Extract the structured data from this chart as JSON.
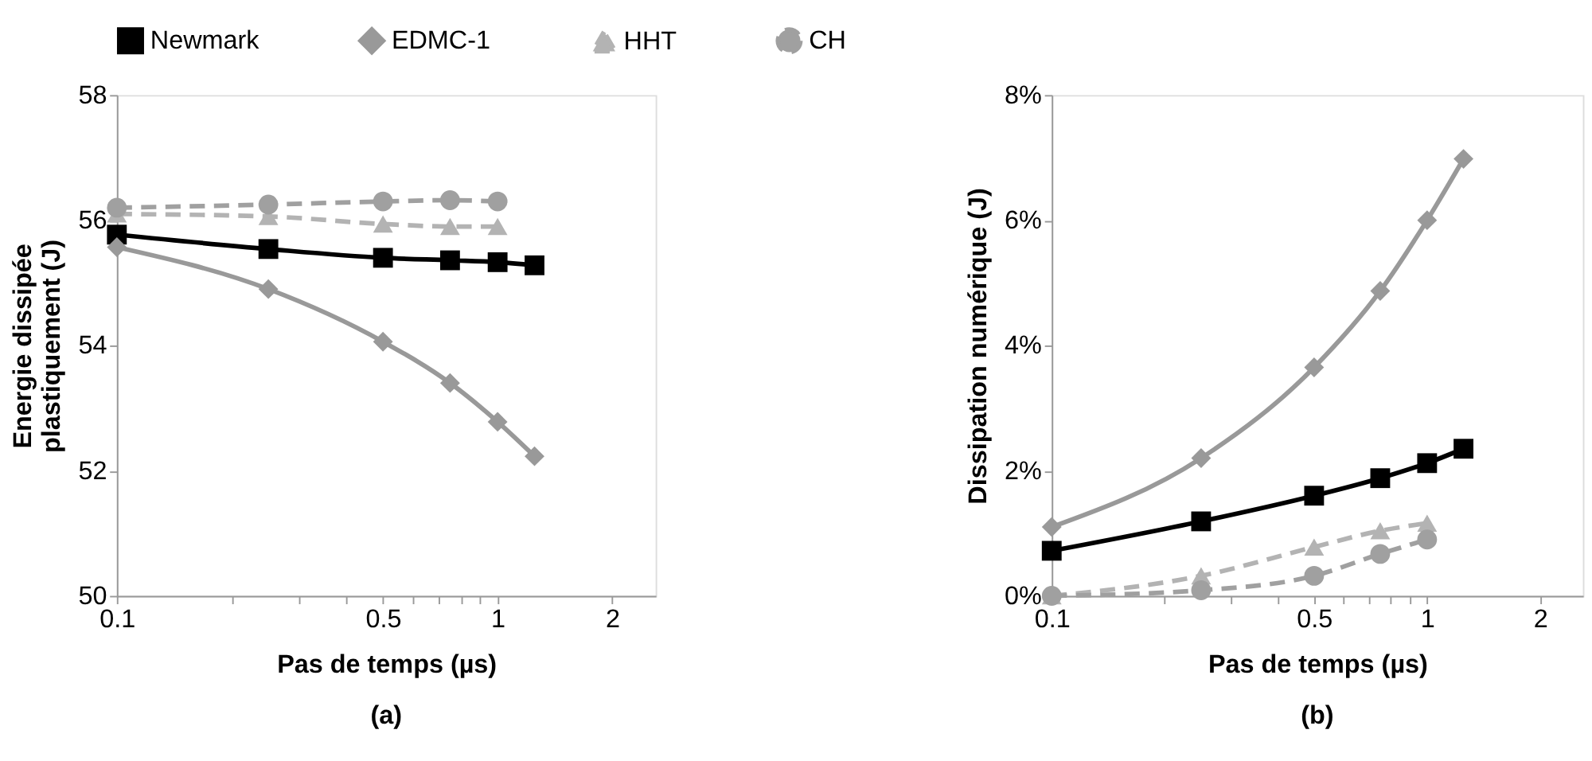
{
  "chart_data": [
    {
      "type": "line",
      "xlabel": "Pas de temps (µs)",
      "ylabel": [
        "Energie dissipée",
        "plastiquement (J)"
      ],
      "annotations": [
        "(a)"
      ],
      "log": "x",
      "grid": false,
      "legend": "top",
      "xlim": [
        0.1,
        2.6
      ],
      "xticks": [
        0.1,
        {
          "value": 0.2,
          "label": null
        },
        {
          "value": 0.3,
          "label": null
        },
        {
          "value": 0.4,
          "label": null
        },
        0.5,
        {
          "value": 0.6,
          "label": null
        },
        {
          "value": 0.7,
          "label": null
        },
        {
          "value": 0.8,
          "label": null
        },
        {
          "value": 0.9,
          "label": null
        },
        1,
        2
      ],
      "ylim": [
        50,
        58
      ],
      "yticks": [
        50,
        52,
        54,
        56,
        58
      ],
      "series": [
        {
          "name": "Newmark",
          "color": "#000000",
          "marker": "square",
          "line_style": "solid",
          "x": [
            0.1,
            0.25,
            0.5,
            0.75,
            1,
            1.25
          ],
          "values": [
            55.77,
            55.54,
            55.4,
            55.36,
            55.33,
            55.28
          ]
        },
        {
          "name": "EDMC-1",
          "color": "#999999",
          "marker": "diamond",
          "line_style": "solid",
          "x": [
            0.1,
            0.25,
            0.5,
            0.75,
            1,
            1.25
          ],
          "values": [
            55.57,
            54.9,
            54.06,
            53.4,
            52.78,
            52.23
          ]
        },
        {
          "name": "HHT",
          "color": "#b3b3b3",
          "marker": "triangle",
          "line_style": "dashed",
          "x": [
            0.1,
            0.25,
            0.5,
            0.75,
            1
          ],
          "values": [
            56.1,
            56.06,
            55.94,
            55.9,
            55.9
          ]
        },
        {
          "name": "CH",
          "color": "#a0a0a0",
          "marker": "circle",
          "line_style": "dashed",
          "x": [
            0.1,
            0.25,
            0.5,
            0.75,
            1
          ],
          "values": [
            56.2,
            56.25,
            56.3,
            56.32,
            56.3
          ]
        }
      ]
    },
    {
      "type": "line",
      "xlabel": "Pas de temps (µs)",
      "ylabel": "Dissipation numérique (J)",
      "annotations": [
        "(b)"
      ],
      "log": "x",
      "grid": false,
      "legend": false,
      "xlim": [
        0.1,
        2.6
      ],
      "xticks": [
        0.1,
        {
          "value": 0.2,
          "label": null
        },
        {
          "value": 0.3,
          "label": null
        },
        {
          "value": 0.4,
          "label": null
        },
        0.5,
        {
          "value": 0.6,
          "label": null
        },
        {
          "value": 0.7,
          "label": null
        },
        {
          "value": 0.8,
          "label": null
        },
        {
          "value": 0.9,
          "label": null
        },
        1,
        2
      ],
      "ylim": [
        0,
        8
      ],
      "yticks": [
        {
          "value": 0,
          "label": "0%"
        },
        {
          "value": 2,
          "label": "2%"
        },
        {
          "value": 4,
          "label": "4%"
        },
        {
          "value": 6,
          "label": "6%"
        },
        {
          "value": 8,
          "label": "8%"
        }
      ],
      "series": [
        {
          "color": "#000000",
          "marker": "square",
          "line_style": "solid",
          "x": [
            0.1,
            0.25,
            0.5,
            0.75,
            1,
            1.25
          ],
          "values": [
            0.72,
            1.19,
            1.6,
            1.88,
            2.12,
            2.35
          ]
        },
        {
          "color": "#999999",
          "marker": "diamond",
          "line_style": "solid",
          "x": [
            0.1,
            0.25,
            0.5,
            0.75,
            1,
            1.25
          ],
          "values": [
            1.1,
            2.2,
            3.65,
            4.87,
            6.0,
            6.98
          ]
        },
        {
          "color": "#b3b3b3",
          "marker": "triangle",
          "line_style": "dashed",
          "x": [
            0.1,
            0.25,
            0.5,
            0.75,
            1
          ],
          "values": [
            0,
            0.32,
            0.78,
            1.04,
            1.16
          ]
        },
        {
          "color": "#a0a0a0",
          "marker": "circle",
          "line_style": "dashed",
          "x": [
            0.1,
            0.25,
            0.5,
            0.75,
            1
          ],
          "values": [
            0,
            0.09,
            0.32,
            0.67,
            0.9
          ]
        }
      ]
    }
  ]
}
